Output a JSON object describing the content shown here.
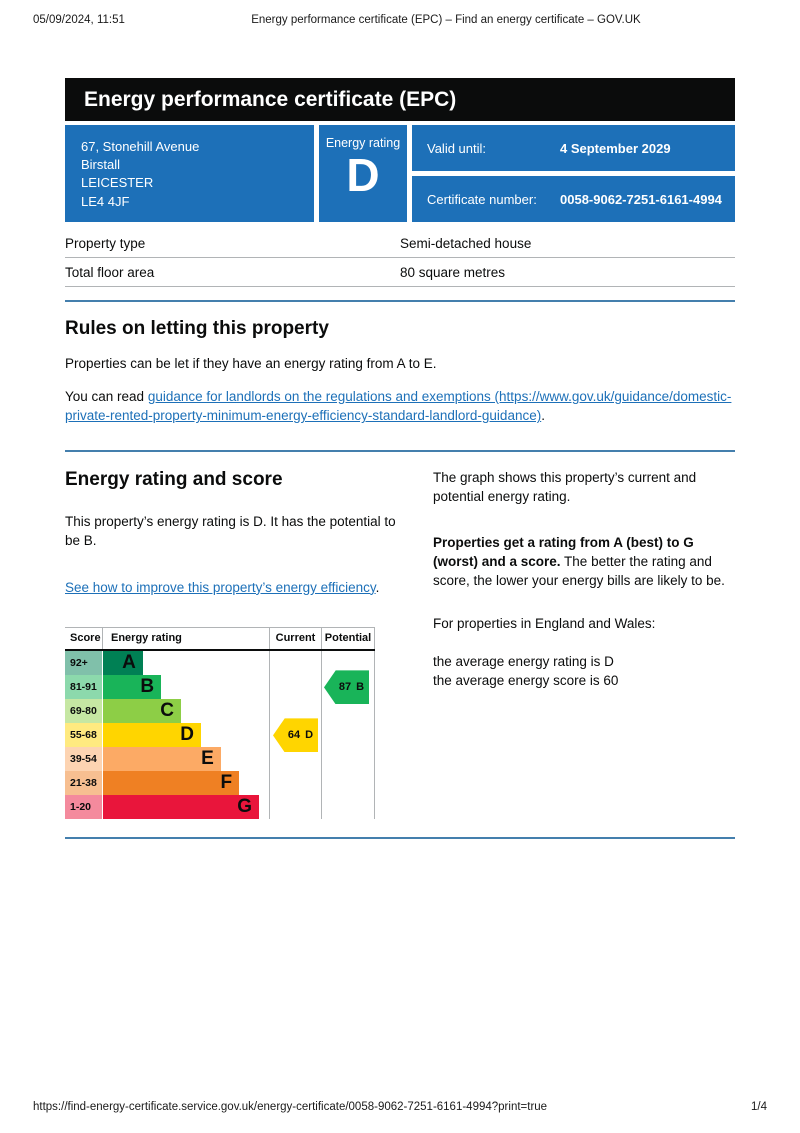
{
  "meta": {
    "date_time": "05/09/2024, 11:51",
    "doc_title": "Energy performance certificate (EPC) – Find an energy certificate – GOV.UK",
    "footer_url": "https://find-energy-certificate.service.gov.uk/energy-certificate/0058-9062-7251-6161-4994?print=true",
    "page_indicator": "1/4"
  },
  "banner": {
    "title": "Energy performance certificate (EPC)"
  },
  "summary": {
    "address_lines": [
      "67, Stonehill Avenue",
      "Birstall",
      "LEICESTER",
      "LE4 4JF"
    ],
    "energy_rating_label": "Energy rating",
    "energy_rating": "D",
    "valid_until_label": "Valid until:",
    "valid_until_value": "4 September 2029",
    "certificate_number_label": "Certificate number:",
    "certificate_number_value": "0058-9062-7251-6161-4994"
  },
  "property_table": {
    "rows": [
      {
        "label": "Property type",
        "value": "Semi-detached house"
      },
      {
        "label": "Total floor area",
        "value": "80 square metres"
      }
    ]
  },
  "rules": {
    "heading": "Rules on letting this property",
    "para1": "Properties can be let if they have an energy rating from A to E.",
    "read_prefix": "You can read ",
    "link_text": "guidance for landlords on the regulations and exemptions (https://www.gov.uk/guidance/domestic-private-rented-property-minimum-energy-efficiency-standard-landlord-guidance)",
    "sentence_end": "."
  },
  "rating_section": {
    "heading": "Energy rating and score",
    "para1": "This property’s energy rating is D. It has the potential to be B.",
    "link_text": "See how to improve this property’s energy efficiency",
    "link_suffix": ".",
    "right1": "The graph shows this property’s current and potential energy rating.",
    "right2_bold": "Properties get a rating from A (best) to G (worst) and a score.",
    "right2_rest": " The better the rating and score, the lower your energy bills are likely to be.",
    "right3": "For properties in England and Wales:",
    "right4a": "the average energy rating is D",
    "right4b": "the average energy score is 60"
  },
  "chart_data": {
    "type": "bar",
    "title": "Energy rating and score",
    "columns": [
      "Score",
      "Energy rating",
      "Current",
      "Potential"
    ],
    "bands": [
      {
        "range": "92+",
        "letter": "A",
        "color": "#008054",
        "tint": "#80c0aa",
        "width_pct": 24
      },
      {
        "range": "81-91",
        "letter": "B",
        "color": "#19b459",
        "tint": "#8cd9ac",
        "width_pct": 35
      },
      {
        "range": "69-80",
        "letter": "C",
        "color": "#8dce46",
        "tint": "#c6e7a3",
        "width_pct": 47
      },
      {
        "range": "55-68",
        "letter": "D",
        "color": "#ffd500",
        "tint": "#ffea80",
        "width_pct": 59
      },
      {
        "range": "39-54",
        "letter": "E",
        "color": "#fcaa65",
        "tint": "#fdd4b2",
        "width_pct": 71
      },
      {
        "range": "21-38",
        "letter": "F",
        "color": "#ef8023",
        "tint": "#f7bf91",
        "width_pct": 82
      },
      {
        "range": "1-20",
        "letter": "G",
        "color": "#e9153b",
        "tint": "#f48a9d",
        "width_pct": 94
      }
    ],
    "current": {
      "score": 64,
      "band": "D",
      "color": "#ffd500"
    },
    "potential": {
      "score": 87,
      "band": "B",
      "color": "#19b459"
    }
  },
  "colors": {
    "govuk_blue": "#1d70b8",
    "banner_bg": "#0b0c0c",
    "link": "#1d70b8",
    "divider_gray": "#b1b4b6",
    "divider_blue": "#447fad"
  }
}
